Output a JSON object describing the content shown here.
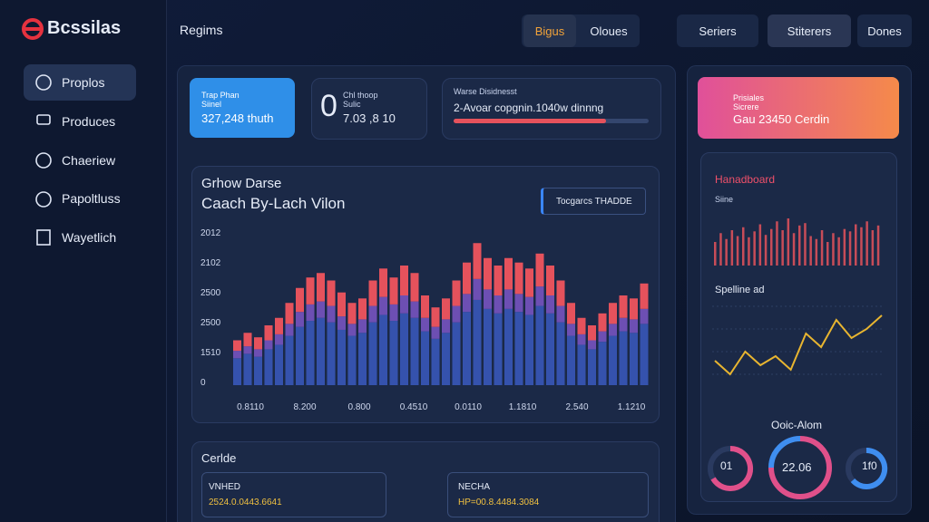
{
  "brand": "Bcssilas",
  "nav": [
    "Proplos",
    "Produces",
    "Chaeriew",
    "Papoltluss",
    "Wayetlich"
  ],
  "topbar": {
    "title": "Regims",
    "tabs": [
      "Bigus",
      "Oloues"
    ],
    "buttons": [
      "Seriers",
      "Stiterers",
      "Dones"
    ]
  },
  "stats": [
    {
      "label": "Trap Phan",
      "sub": "Siinel",
      "value": "327,248 thuth"
    },
    {
      "big": "0",
      "label": "Chl thoop",
      "sub": "Sulic",
      "value": "7.03 ,8 10"
    },
    {
      "label": "Warse Disidnesst",
      "value": "2-Avoar copgnin.1040w dinnng",
      "progress": 78
    }
  ],
  "main_chart": {
    "type": "bar",
    "subtitle": "Grhow Darse",
    "title": "Caach By-Lach Vilon",
    "button": "Tocgarcs THADDE",
    "y_axis_labels": [
      "2012",
      "2102",
      "2500",
      "2500",
      "1510",
      "0"
    ],
    "x_axis_labels": [
      "0.8110",
      "8.200",
      "0.800",
      "0.4510",
      "0.0110",
      "1.1810",
      "2.540",
      "1.1210"
    ],
    "ylim": [
      0,
      100
    ],
    "series": [
      {
        "color": "#3552ad",
        "values": [
          18,
          21,
          19,
          24,
          27,
          33,
          39,
          43,
          45,
          42,
          37,
          33,
          35,
          42,
          47,
          43,
          48,
          45,
          36,
          31,
          35,
          42,
          49,
          57,
          51,
          48,
          51,
          49,
          47,
          53,
          48,
          42,
          33,
          27,
          24,
          29,
          33,
          36,
          35,
          41
        ]
      },
      {
        "color": "#6d4fb3",
        "values": [
          5,
          5,
          5,
          6,
          7,
          8,
          10,
          11,
          11,
          11,
          9,
          8,
          9,
          11,
          12,
          11,
          12,
          11,
          9,
          8,
          9,
          11,
          12,
          14,
          13,
          12,
          13,
          12,
          12,
          13,
          12,
          11,
          8,
          7,
          6,
          7,
          8,
          9,
          9,
          10
        ]
      },
      {
        "color": "#e5525c",
        "values": [
          7,
          9,
          8,
          10,
          11,
          14,
          16,
          18,
          19,
          17,
          16,
          14,
          14,
          17,
          19,
          18,
          20,
          19,
          15,
          13,
          14,
          17,
          21,
          24,
          21,
          20,
          21,
          21,
          19,
          22,
          20,
          17,
          14,
          11,
          10,
          12,
          14,
          15,
          14,
          17
        ]
      }
    ]
  },
  "bottom": {
    "title": "Cerlde",
    "cards": [
      {
        "label": "VNHED",
        "value": "2524.0.0443.6641"
      },
      {
        "label": "NECHA",
        "value": "HP=00.8.4484.3084"
      }
    ]
  },
  "side": {
    "promo": {
      "label": "Prisiales",
      "sub": "Sicrere",
      "value": "Gau 23450 Cerdin"
    },
    "board": {
      "title": "Hanadboard",
      "sub": "Siine",
      "color": "#e5525c",
      "values": [
        40,
        55,
        45,
        60,
        50,
        65,
        48,
        58,
        70,
        52,
        62,
        75,
        60,
        80,
        55,
        68,
        72,
        50,
        45,
        60,
        40,
        55,
        48,
        62,
        58,
        70,
        65,
        75,
        60,
        68
      ]
    },
    "line": {
      "title": "Spelline ad",
      "color": "#e8b530",
      "values": [
        30,
        15,
        40,
        25,
        35,
        20,
        60,
        45,
        75,
        55,
        65,
        80
      ]
    },
    "gauges": {
      "title": "Ooic-Alom",
      "labels": [
        "01",
        "22.06",
        "1f0"
      ]
    }
  }
}
